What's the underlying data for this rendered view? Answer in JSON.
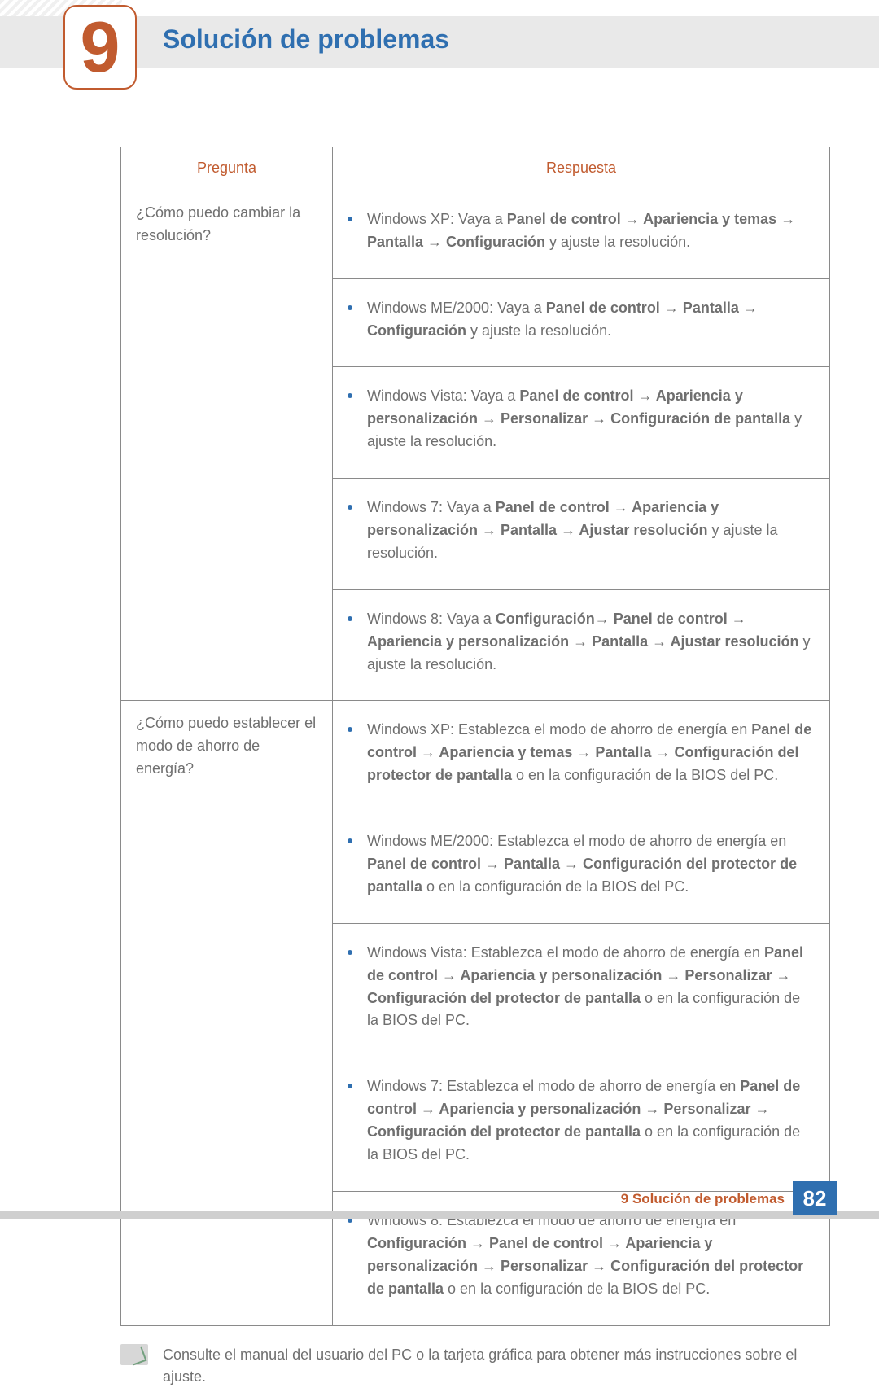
{
  "chapter": {
    "number": "9",
    "title": "Solución de problemas"
  },
  "table": {
    "headers": {
      "q": "Pregunta",
      "a": "Respuesta"
    },
    "rows": [
      {
        "question": "¿Cómo puedo cambiar la resolución?",
        "answers": [
          "Windows XP: Vaya a <b>Panel de control → Apariencia y temas → Pantalla → Configuración</b> y ajuste la resolución.",
          "Windows ME/2000: Vaya a <b>Panel de control → Pantalla → Configuración</b> y ajuste la resolución.",
          "Windows Vista: Vaya a <b>Panel de control → Apariencia y personalización → Personalizar → Configuración de pantalla</b> y ajuste la resolución.",
          "Windows 7: Vaya a <b>Panel de control → Apariencia y personalización → Pantalla → Ajustar resolución</b> y ajuste la resolución.",
          "Windows 8: Vaya a <b>Configuración→ Panel de control → Apariencia y personalización → Pantalla → Ajustar resolución</b> y ajuste la resolución."
        ]
      },
      {
        "question": "¿Cómo puedo establecer el modo de ahorro de energía?",
        "answers": [
          "Windows XP: Establezca el modo de ahorro de energía en <b>Panel de control → Apariencia y temas → Pantalla → Configuración del protector de pantalla</b> o en la configuración de la BIOS del PC.",
          "Windows ME/2000: Establezca el modo de ahorro de energía en <b>Panel de control → Pantalla → Configuración del protector de pantalla</b> o en la configuración de la BIOS del PC.",
          "Windows Vista: Establezca el modo de ahorro de energía en <b>Panel de control → Apariencia y personalización → Personalizar → Configuración del protector de pantalla</b> o en la configuración de la BIOS del PC.",
          "Windows 7: Establezca el modo de ahorro de energía en <b>Panel de control → Apariencia y personalización → Personalizar → Configuración del protector de pantalla</b> o en la configuración de la BIOS del PC.",
          "Windows 8: Establezca el modo de ahorro de energía en <b>Configuración → Panel de control → Apariencia y personalización → Personalizar → Configuración del protector de pantalla</b> o en la configuración de la BIOS del PC."
        ]
      }
    ]
  },
  "note": "Consulte el manual del usuario del PC o la tarjeta gráfica para obtener más instrucciones sobre el ajuste.",
  "footer": {
    "label": "9 Solución de problemas",
    "page": "82"
  },
  "colors": {
    "accent_orange": "#c15b2f",
    "accent_blue": "#2f6fb0",
    "text_gray": "#6f6f6f",
    "border_gray": "#8a8a8a",
    "header_gray": "#e9e9e9"
  }
}
